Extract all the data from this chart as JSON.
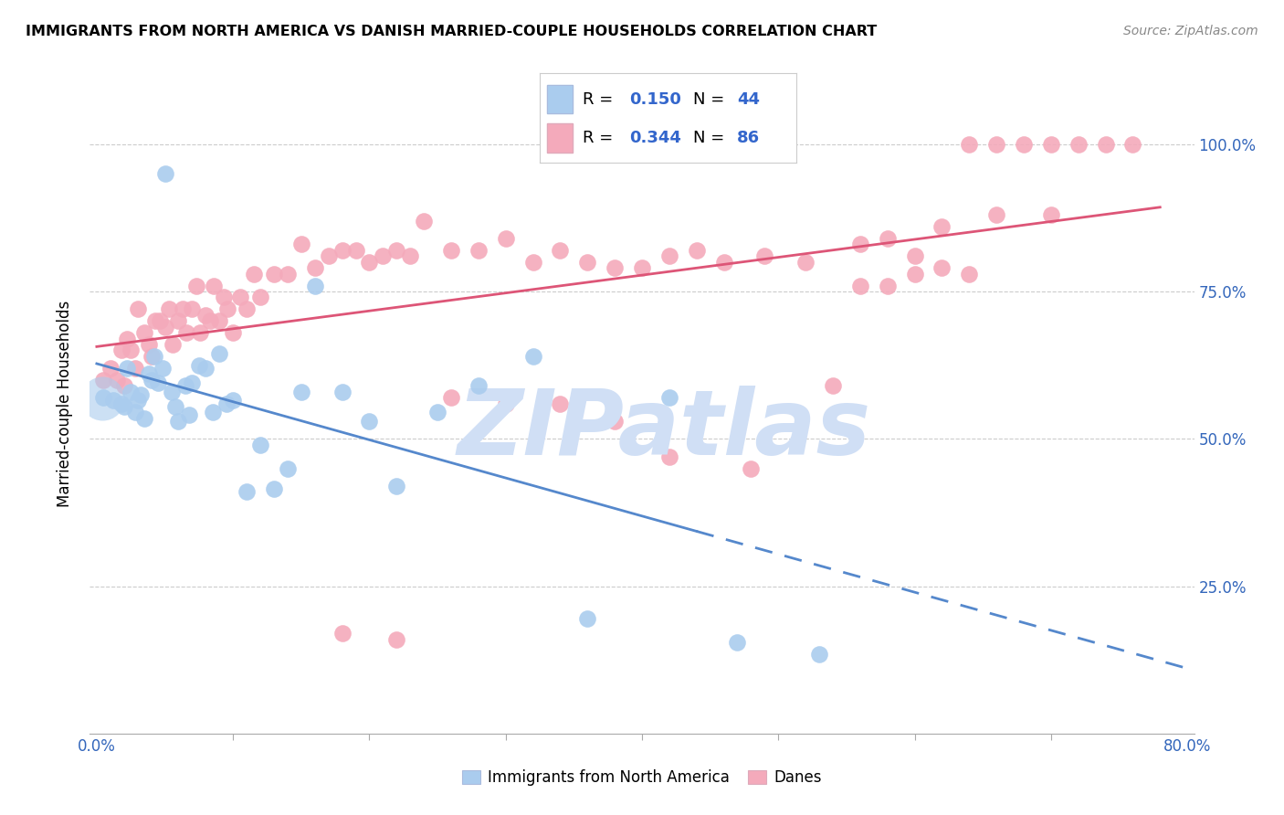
{
  "title": "IMMIGRANTS FROM NORTH AMERICA VS DANISH MARRIED-COUPLE HOUSEHOLDS CORRELATION CHART",
  "source": "Source: ZipAtlas.com",
  "ylabel": "Married-couple Households",
  "legend_blue_r": "0.150",
  "legend_blue_n": "44",
  "legend_pink_r": "0.344",
  "legend_pink_n": "86",
  "blue_color": "#aaccee",
  "pink_color": "#f4aabb",
  "blue_line_color": "#5588cc",
  "pink_line_color": "#dd5577",
  "watermark_text": "ZIPatlas",
  "watermark_color": "#d0dff5",
  "blue_x": [
    0.005,
    0.012,
    0.018,
    0.02,
    0.022,
    0.025,
    0.028,
    0.03,
    0.032,
    0.035,
    0.038,
    0.04,
    0.042,
    0.045,
    0.048,
    0.05,
    0.055,
    0.058,
    0.06,
    0.065,
    0.068,
    0.07,
    0.075,
    0.08,
    0.085,
    0.09,
    0.095,
    0.1,
    0.11,
    0.12,
    0.13,
    0.14,
    0.15,
    0.16,
    0.18,
    0.2,
    0.22,
    0.25,
    0.28,
    0.32,
    0.36,
    0.42,
    0.47,
    0.53
  ],
  "blue_y": [
    0.57,
    0.565,
    0.56,
    0.555,
    0.62,
    0.58,
    0.545,
    0.565,
    0.575,
    0.535,
    0.61,
    0.6,
    0.64,
    0.595,
    0.62,
    0.95,
    0.58,
    0.555,
    0.53,
    0.59,
    0.54,
    0.595,
    0.625,
    0.62,
    0.545,
    0.645,
    0.56,
    0.565,
    0.41,
    0.49,
    0.415,
    0.45,
    0.58,
    0.76,
    0.58,
    0.53,
    0.42,
    0.545,
    0.59,
    0.64,
    0.195,
    0.57,
    0.155,
    0.135
  ],
  "pink_x": [
    0.005,
    0.01,
    0.015,
    0.018,
    0.02,
    0.022,
    0.025,
    0.028,
    0.03,
    0.035,
    0.038,
    0.04,
    0.043,
    0.046,
    0.05,
    0.053,
    0.056,
    0.06,
    0.063,
    0.066,
    0.07,
    0.073,
    0.076,
    0.08,
    0.083,
    0.086,
    0.09,
    0.093,
    0.096,
    0.1,
    0.105,
    0.11,
    0.115,
    0.12,
    0.13,
    0.14,
    0.15,
    0.16,
    0.17,
    0.18,
    0.19,
    0.2,
    0.21,
    0.22,
    0.23,
    0.24,
    0.26,
    0.28,
    0.3,
    0.32,
    0.34,
    0.36,
    0.38,
    0.4,
    0.42,
    0.44,
    0.46,
    0.49,
    0.52,
    0.56,
    0.58,
    0.6,
    0.62,
    0.64,
    0.66,
    0.68,
    0.7,
    0.72,
    0.74,
    0.76,
    0.6,
    0.62,
    0.64,
    0.66,
    0.7,
    0.56,
    0.58,
    0.54,
    0.34,
    0.38,
    0.42,
    0.48,
    0.26,
    0.3,
    0.18,
    0.22
  ],
  "pink_y": [
    0.6,
    0.62,
    0.6,
    0.65,
    0.59,
    0.67,
    0.65,
    0.62,
    0.72,
    0.68,
    0.66,
    0.64,
    0.7,
    0.7,
    0.69,
    0.72,
    0.66,
    0.7,
    0.72,
    0.68,
    0.72,
    0.76,
    0.68,
    0.71,
    0.7,
    0.76,
    0.7,
    0.74,
    0.72,
    0.68,
    0.74,
    0.72,
    0.78,
    0.74,
    0.78,
    0.78,
    0.83,
    0.79,
    0.81,
    0.82,
    0.82,
    0.8,
    0.81,
    0.82,
    0.81,
    0.87,
    0.82,
    0.82,
    0.84,
    0.8,
    0.82,
    0.8,
    0.79,
    0.79,
    0.81,
    0.82,
    0.8,
    0.81,
    0.8,
    0.83,
    0.84,
    0.81,
    0.86,
    1.0,
    1.0,
    1.0,
    1.0,
    1.0,
    1.0,
    1.0,
    0.78,
    0.79,
    0.78,
    0.88,
    0.88,
    0.76,
    0.76,
    0.59,
    0.56,
    0.53,
    0.47,
    0.45,
    0.57,
    0.56,
    0.17,
    0.16
  ]
}
